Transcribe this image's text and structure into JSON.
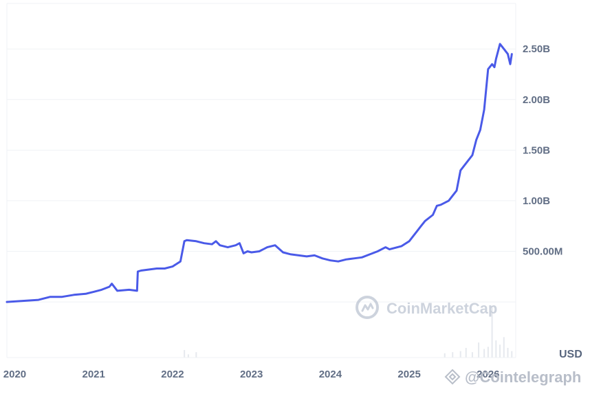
{
  "chart_data": {
    "type": "line",
    "title": "",
    "xlabel": "",
    "ylabel": "",
    "unit": "USD",
    "x_ticks": [
      "2020",
      "2021",
      "2022",
      "2023",
      "2024",
      "2025",
      "2026"
    ],
    "y_ticks": [
      "500.00M",
      "1.00B",
      "1.50B",
      "2.00B",
      "2.50B"
    ],
    "y_tick_values": [
      500000000,
      1000000000,
      1500000000,
      2000000000,
      2500000000
    ],
    "ylim": [
      -550000000,
      2950000000
    ],
    "xlim": [
      2019.9,
      2026.35
    ],
    "grid": true,
    "legend": "none",
    "colors": {
      "line": "#4a5ae8",
      "grid": "#eff2f5",
      "volume": "#e6e9ee",
      "axis_text": "#616e85"
    },
    "series": [
      {
        "x": [
          2019.9,
          2020.1,
          2020.3,
          2020.45,
          2020.6,
          2020.75,
          2020.9,
          2021.0,
          2021.1,
          2021.2,
          2021.23,
          2021.3,
          2021.45,
          2021.55,
          2021.56,
          2021.6,
          2021.7,
          2021.8,
          2021.9,
          2022.0,
          2022.1,
          2022.15,
          2022.18,
          2022.3,
          2022.4,
          2022.5,
          2022.55,
          2022.6,
          2022.7,
          2022.8,
          2022.85,
          2022.9,
          2022.95,
          2023.0,
          2023.1,
          2023.2,
          2023.3,
          2023.4,
          2023.5,
          2023.6,
          2023.7,
          2023.8,
          2023.9,
          2024.0,
          2024.1,
          2024.2,
          2024.3,
          2024.4,
          2024.5,
          2024.6,
          2024.7,
          2024.75,
          2024.8,
          2024.9,
          2025.0,
          2025.1,
          2025.15,
          2025.2,
          2025.3,
          2025.35,
          2025.4,
          2025.5,
          2025.6,
          2025.65,
          2025.7,
          2025.8,
          2025.85,
          2025.9,
          2025.95,
          2026.0,
          2026.05,
          2026.08,
          2026.1,
          2026.15,
          2026.2,
          2026.25,
          2026.28,
          2026.3
        ],
        "y": [
          0,
          10000000,
          20000000,
          50000000,
          50000000,
          70000000,
          80000000,
          100000000,
          120000000,
          150000000,
          180000000,
          110000000,
          120000000,
          110000000,
          300000000,
          310000000,
          320000000,
          330000000,
          330000000,
          350000000,
          400000000,
          600000000,
          610000000,
          600000000,
          580000000,
          570000000,
          600000000,
          560000000,
          540000000,
          560000000,
          580000000,
          480000000,
          500000000,
          490000000,
          500000000,
          540000000,
          560000000,
          490000000,
          470000000,
          460000000,
          450000000,
          460000000,
          430000000,
          410000000,
          400000000,
          420000000,
          430000000,
          440000000,
          470000000,
          500000000,
          540000000,
          520000000,
          530000000,
          550000000,
          600000000,
          700000000,
          750000000,
          800000000,
          860000000,
          950000000,
          960000000,
          1000000000,
          1100000000,
          1300000000,
          1350000000,
          1450000000,
          1600000000,
          1700000000,
          1900000000,
          2300000000,
          2350000000,
          2320000000,
          2400000000,
          2550000000,
          2500000000,
          2450000000,
          2350000000,
          2450000000
        ]
      }
    ],
    "volume": {
      "x": [
        2022.15,
        2022.2,
        2022.3,
        2025.45,
        2025.55,
        2025.65,
        2025.72,
        2025.8,
        2025.88,
        2025.95,
        2026.0,
        2026.05,
        2026.1,
        2026.15,
        2026.2,
        2026.25,
        2026.3
      ],
      "y": [
        7,
        3,
        5,
        4,
        5,
        6,
        9,
        5,
        14,
        8,
        10,
        48,
        16,
        12,
        19,
        9,
        6
      ]
    }
  },
  "watermarks": {
    "brand": "CoinMarketCap",
    "credit": "@Cointelegraph"
  }
}
